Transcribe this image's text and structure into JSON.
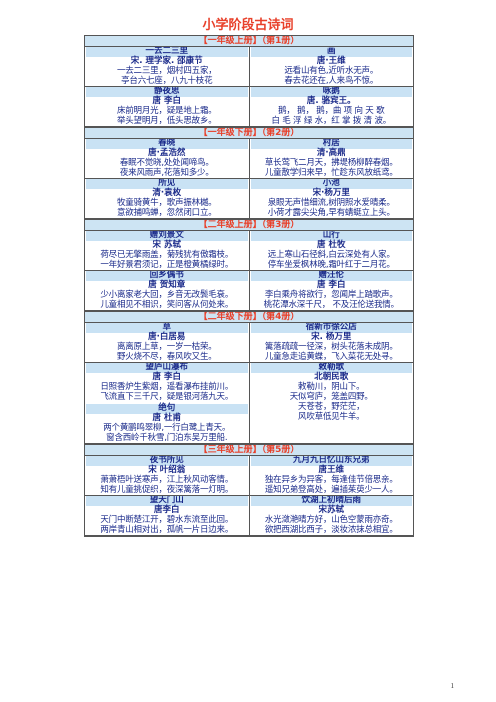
{
  "title": "小学阶段古诗词",
  "page_number": "1",
  "sections": [
    {
      "grade": "【一年级上册】（第1册）",
      "rows": [
        [
          {
            "title": "一去二三里",
            "author": "宋. 理学家. 邵康节",
            "lines": [
              "一去二三里，烟村四五家，",
              "亭台六七座，八九十枝花"
            ]
          },
          {
            "title": "画",
            "author": "唐·王维",
            "lines": [
              "远看山有色,近听水无声。",
              "春去花还在,人来鸟不惊。"
            ]
          }
        ],
        [
          {
            "title": "静夜思",
            "author": "唐 李白",
            "lines": [
              "床前明月光，疑是地上霜。",
              "举头望明月，低头思故乡。"
            ]
          },
          {
            "title": "咏鹅",
            "author": "唐. 骆宾王。",
            "lines": [
              "鹅， 鹅， 鹅，曲 项 向 天 歌",
              "白 毛 浮 绿 水，红 掌 拨 清 波。"
            ]
          }
        ]
      ]
    },
    {
      "grade": "【一年级下册】（第2册）",
      "rows": [
        [
          {
            "title": "春晓",
            "author": "唐·孟浩然",
            "lines": [
              "春眠不觉晓,处处闻啼鸟。",
              "夜来风雨声,花落知多少。"
            ]
          },
          {
            "title": "村居",
            "author": "清·高鼎",
            "lines": [
              "草长莺飞二月天，拂堤杨柳醉春烟。",
              "儿童散学归来早，忙趁东风放纸鸢。"
            ]
          }
        ],
        [
          {
            "title": "所见",
            "author": "清·袁枚",
            "lines": [
              "牧童骑黄牛，歌声振林樾。",
              "意欲捕鸣蝉，忽然闭口立。"
            ]
          },
          {
            "title": "小池",
            "author": "宋·杨万里",
            "lines": [
              "泉眼无声惜细流,树阴照水爱晴柔。",
              "小荷才露尖尖角,早有蜻蜓立上头。"
            ]
          }
        ]
      ]
    },
    {
      "grade": "【二年级上册】（第3册）",
      "rows": [
        [
          {
            "title": "赠刘景文",
            "author": "宋 苏轼",
            "lines": [
              "荷尽已无擎雨盖，菊残犹有傲霜枝。",
              "一年好景君须记，正是橙黄橘绿时。"
            ]
          },
          {
            "title": "山行",
            "author": "唐 杜牧",
            "lines": [
              "远上寒山石径斜,白云深处有人家。",
              "停车坐爱枫林晚,霜叶红于二月花。"
            ]
          }
        ],
        [
          {
            "title": "回乡偶书",
            "author": "唐 贺知章",
            "lines": [
              "少小离家老大回，乡音无改鬓毛衰。",
              "儿童相见不相识，笑问客从何处来。"
            ]
          },
          {
            "title": "赠汪伦",
            "author": "唐 李白",
            "lines": [
              "李白乘舟将欲行，忽闻岸上踏歌声。",
              "桃花潭水深千尺， 不及汪伦送我情。"
            ]
          }
        ]
      ]
    },
    {
      "grade": "【二年级下册】（第4册）",
      "rows": [
        [
          {
            "title": "草",
            "author": "唐·白居易",
            "lines": [
              "离离原上草，一岁一枯荣。",
              "野火烧不尽，春风吹又生。"
            ]
          },
          {
            "title": "宿新市徐公店",
            "author": "宋. 杨万里",
            "lines": [
              "篱落疏疏一径深，树头花落未成阴。",
              "儿童急走追黄蝶，飞入菜花无处寻。"
            ]
          }
        ],
        [
          {
            "title": "望庐山瀑布",
            "author": "唐 李白",
            "lines": [
              "日照香炉生紫烟，遥看瀑布挂前川。",
              "飞流直下三千尺，疑是银河落九天。"
            ],
            "extra": {
              "title": "绝句",
              "author": "唐 杜甫",
              "lines": [
                "两个黄鹂鸣翠柳,一行白鹭上青天。",
                "窗含西岭千秋雪,门泊东吴万里船."
              ]
            }
          },
          {
            "title": "敕勒歌",
            "author": "北朝民歌",
            "lines": [
              "敕勒川，阴山下。",
              "天似穹庐，笼盖四野。",
              "天苍苍，野茫茫，",
              "风吹草低见牛羊。"
            ]
          }
        ]
      ]
    },
    {
      "grade": "【三年级上册】（第5册）",
      "rows": [
        [
          {
            "title": "夜书所见",
            "author": "宋 叶绍翁",
            "lines": [
              "萧萧梧叶送寒声，江上秋风动客情。",
              "知有儿童挑促织，夜深篱落一灯明。"
            ]
          },
          {
            "title": "九月九日忆山东兄弟",
            "author": "唐王维",
            "lines": [
              "独在异乡为异客，每逢佳节倍思亲。",
              "遥知兄弟登高处，遍插茱萸少一人。"
            ]
          }
        ],
        [
          {
            "title": "望天门山",
            "author": "唐李白",
            "lines": [
              "天门中断楚江开，碧水东流至此回。",
              "两岸青山相对出，孤帆一片日边来。"
            ]
          },
          {
            "title": "饮湖上初晴后雨",
            "author": "宋苏轼",
            "lines": [
              "水光潋滟晴方好，山色空蒙雨亦奇。",
              "欲把西湖比西子，淡妆浓抹总相宜。"
            ]
          }
        ]
      ]
    }
  ]
}
